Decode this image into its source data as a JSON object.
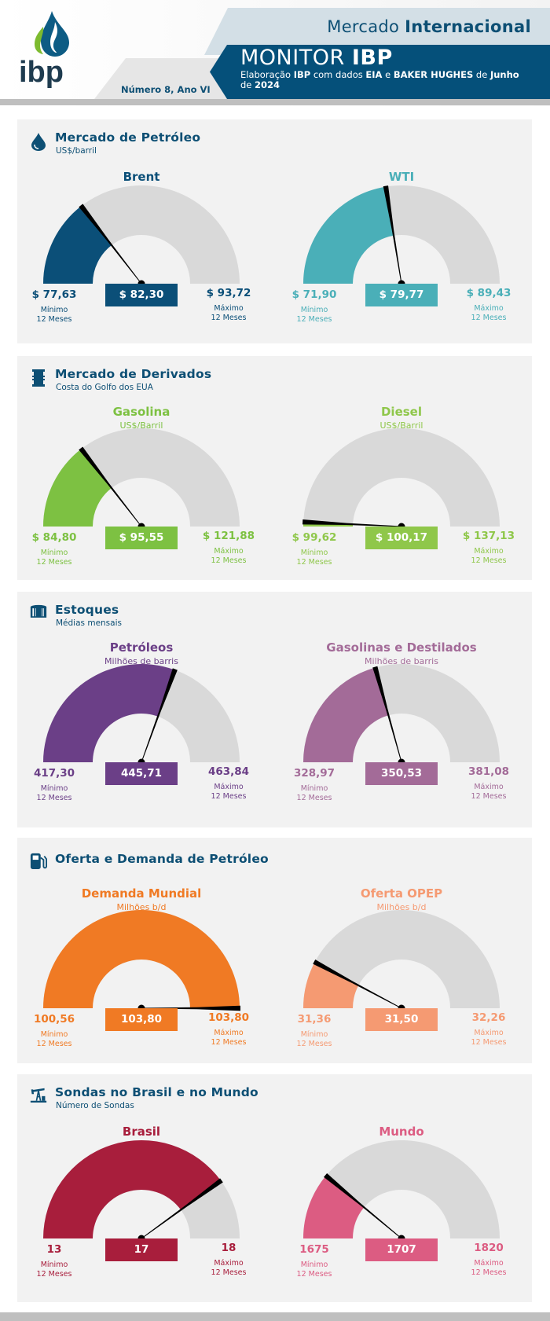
{
  "header": {
    "brand": "ibp",
    "section_prefix": "Mercado",
    "section_bold": "Internacional",
    "monitor_prefix": "MONITOR",
    "monitor_bold": "IBP",
    "subtitle_parts": [
      "Elaboração ",
      "IBP",
      " com dados ",
      "EIA",
      " e ",
      "BAKER HUGHES",
      " de ",
      "Junho",
      " de ",
      "2024"
    ],
    "issue": "Número 8, Ano VI",
    "colors": {
      "dark_blue": "#05507a",
      "light_blue": "#d3dfe6"
    }
  },
  "labels": {
    "min_line1": "Mínimo",
    "max_line1": "Máximo",
    "period": "12 Meses"
  },
  "sections": [
    {
      "icon": "oil-drop-icon",
      "title": "Mercado de Petróleo",
      "subtitle": "US$/barril",
      "gauges": [
        {
          "name": "Brent",
          "unit": "",
          "min": 77.63,
          "max": 93.72,
          "value": 82.3,
          "min_label": "$ 77,63",
          "max_label": "$ 93,72",
          "value_label": "$ 82,30",
          "color": "#0b4f78"
        },
        {
          "name": "WTI",
          "unit": "",
          "min": 71.9,
          "max": 89.43,
          "value": 79.77,
          "min_label": "$ 71,90",
          "max_label": "$ 89,43",
          "value_label": "$ 79,77",
          "color": "#4aafb8"
        }
      ]
    },
    {
      "icon": "barrel-icon",
      "title": "Mercado de Derivados",
      "subtitle": "Costa do Golfo dos EUA",
      "gauges": [
        {
          "name": "Gasolina",
          "unit": "US$/Barril",
          "min": 84.8,
          "max": 121.88,
          "value": 95.55,
          "min_label": "$ 84,80",
          "max_label": "$ 121,88",
          "value_label": "$ 95,55",
          "color": "#7dc142"
        },
        {
          "name": "Diesel",
          "unit": "US$/Barril",
          "min": 99.62,
          "max": 137.13,
          "value": 100.17,
          "min_label": "$ 99,62",
          "max_label": "$ 137,13",
          "value_label": "$ 100,17",
          "color": "#8fc74a"
        }
      ]
    },
    {
      "icon": "storage-tank-icon",
      "title": "Estoques",
      "subtitle": "Médias mensais",
      "gauges": [
        {
          "name": "Petróleos",
          "unit": "Milhões de barris",
          "min": 417.3,
          "max": 463.84,
          "value": 445.71,
          "min_label": "417,30",
          "max_label": "463,84",
          "value_label": "445,71",
          "color": "#6b3f87"
        },
        {
          "name": "Gasolinas e Destilados",
          "unit": "Milhões de barris",
          "min": 328.97,
          "max": 381.08,
          "value": 350.53,
          "min_label": "328,97",
          "max_label": "381,08",
          "value_label": "350,53",
          "color": "#a36b98"
        }
      ]
    },
    {
      "icon": "fuel-pump-icon",
      "title": "Oferta e Demanda de Petróleo",
      "subtitle": "",
      "gauges": [
        {
          "name": "Demanda Mundial",
          "unit": "Milhões b/d",
          "min": 100.56,
          "max": 103.8,
          "value": 103.8,
          "min_label": "100,56",
          "max_label": "103,80",
          "value_label": "103,80",
          "color": "#f07a24"
        },
        {
          "name": "Oferta OPEP",
          "unit": "Milhões b/d",
          "min": 31.36,
          "max": 32.26,
          "value": 31.5,
          "min_label": "31,36",
          "max_label": "32,26",
          "value_label": "31,50",
          "color": "#f59a72"
        }
      ]
    },
    {
      "icon": "oil-pumpjack-icon",
      "title": "Sondas no Brasil e no Mundo",
      "subtitle": "Número de Sondas",
      "gauges": [
        {
          "name": "Brasil",
          "unit": "",
          "min": 13,
          "max": 18,
          "value": 17,
          "min_label": "13",
          "max_label": "18",
          "value_label": "17",
          "color": "#a81e3c"
        },
        {
          "name": "Mundo",
          "unit": "",
          "min": 1675,
          "max": 1820,
          "value": 1707,
          "min_label": "1675",
          "max_label": "1820",
          "value_label": "1707",
          "color": "#dc5c82"
        }
      ]
    }
  ]
}
